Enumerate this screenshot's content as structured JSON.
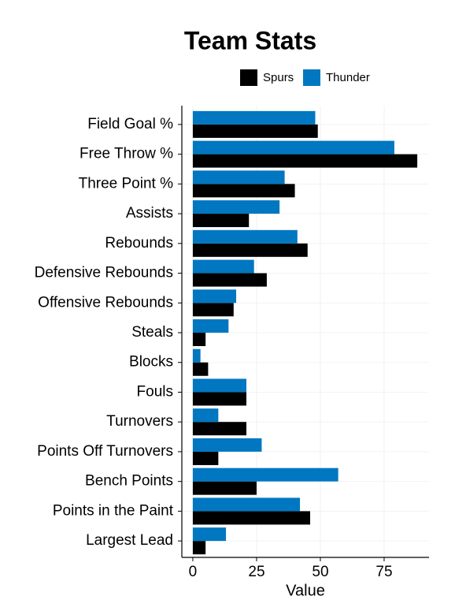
{
  "chart_data": {
    "type": "barh",
    "title": "Team Stats",
    "x_label": "Value",
    "categories": [
      "Field Goal %",
      "Free Throw %",
      "Three Point %",
      "Assists",
      "Rebounds",
      "Defensive Rebounds",
      "Offensive Rebounds",
      "Steals",
      "Blocks",
      "Fouls",
      "Turnovers",
      "Points Off Turnovers",
      "Bench Points",
      "Points in the Paint",
      "Largest Lead"
    ],
    "series": [
      {
        "name": "Spurs",
        "color": "#000000",
        "values": [
          49,
          88,
          40,
          22,
          45,
          29,
          16,
          5,
          6,
          21,
          21,
          10,
          25,
          46,
          5
        ]
      },
      {
        "name": "Thunder",
        "color": "#0077c0",
        "values": [
          48,
          79,
          36,
          34,
          41,
          24,
          17,
          14,
          3,
          21,
          10,
          27,
          57,
          42,
          13
        ]
      }
    ],
    "xlim": [
      -4.3,
      92.6
    ],
    "xticks": [
      0,
      25,
      50,
      75
    ],
    "grid": true,
    "legend": "top"
  }
}
